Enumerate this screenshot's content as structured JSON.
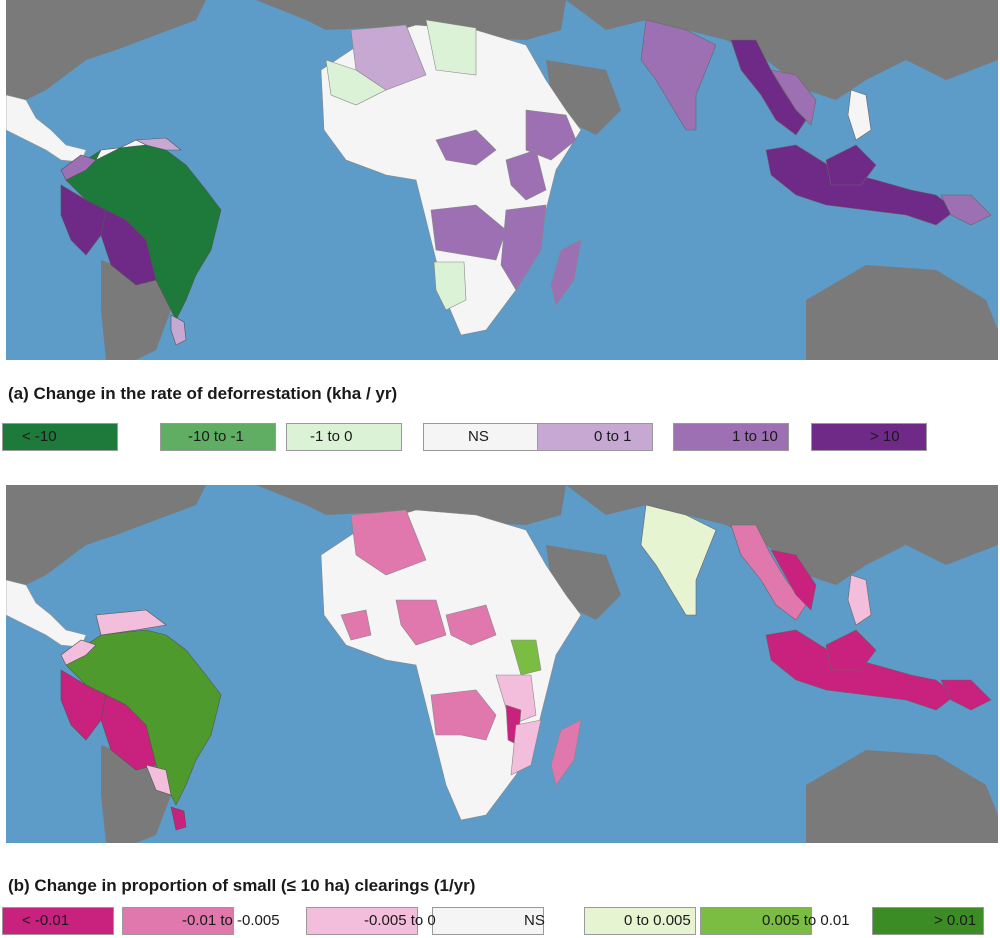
{
  "panel_a": {
    "title": "(a) Change in the rate of deforrestation (kha / yr)",
    "legend": [
      {
        "label": "< -10",
        "color": "#1d7a3a"
      },
      {
        "label": "-10 to -1",
        "color": "#5fae63"
      },
      {
        "label": "-1 to 0",
        "color": "#dcf2d6"
      },
      {
        "label": "NS",
        "color": "#f5f5f5"
      },
      {
        "label": "0 to 1",
        "color": "#c6a8d3"
      },
      {
        "label": "1 to 10",
        "color": "#9c70b3"
      },
      {
        "label": "> 10",
        "color": "#6e2a86"
      }
    ]
  },
  "panel_b": {
    "title": "(b) Change in proportion of small (≤ 10 ha) clearings (1/yr)",
    "legend": [
      {
        "label": "< -0.01",
        "color": "#c9217e"
      },
      {
        "label": "-0.01 to -0.005",
        "color": "#e078ad"
      },
      {
        "label": "-0.005 to 0",
        "color": "#f3bedb"
      },
      {
        "label": "NS",
        "color": "#f5f5f5"
      },
      {
        "label": "0 to 0.005",
        "color": "#e6f4d2"
      },
      {
        "label": "0.005 to 0.01",
        "color": "#7bbd42"
      },
      {
        "label": "> 0.01",
        "color": "#3c8c26"
      }
    ]
  },
  "ocean_color": "#5d9bc9",
  "land_color": "#7a7a7a"
}
